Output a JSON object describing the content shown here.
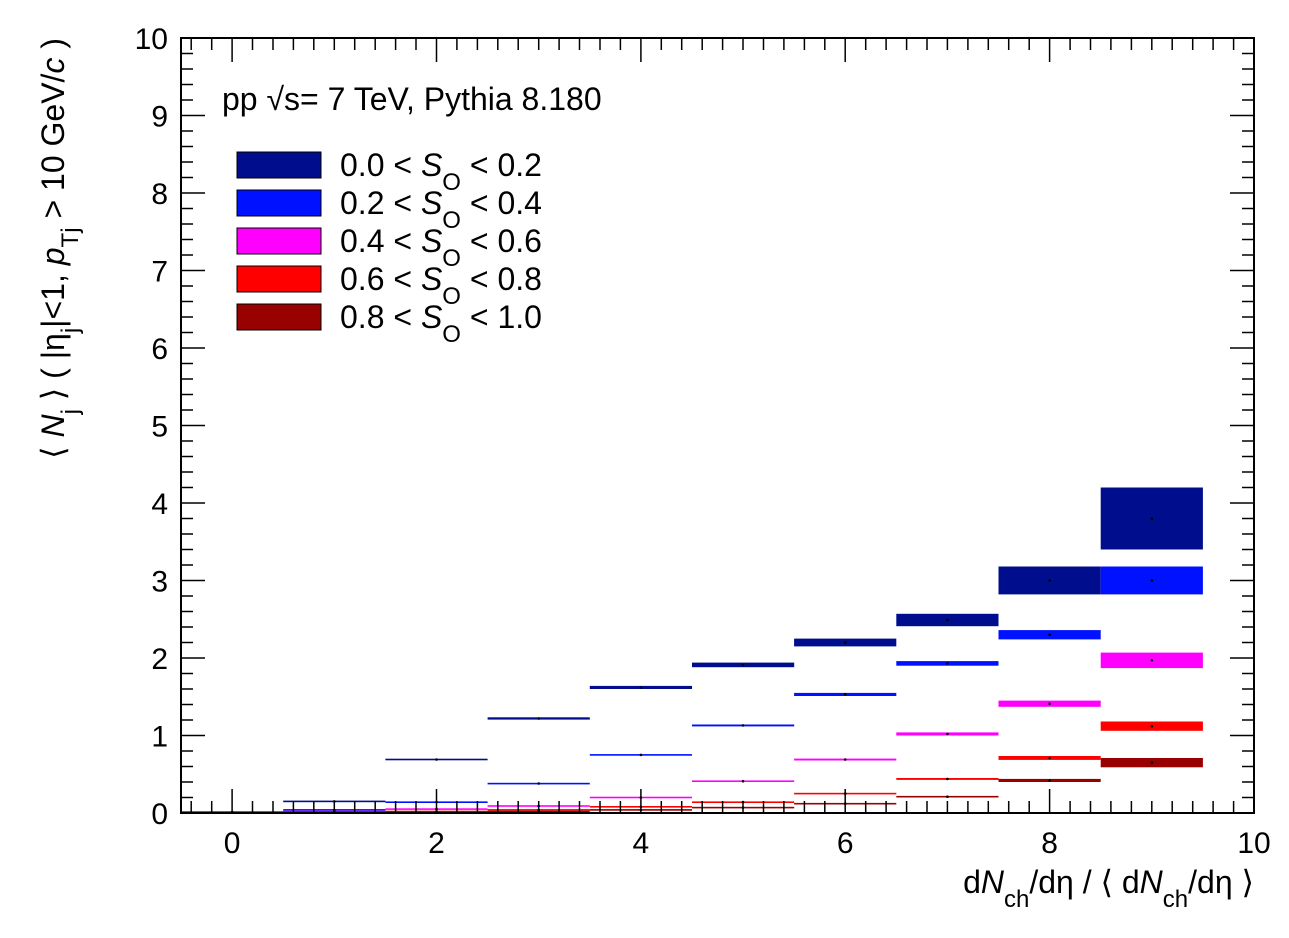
{
  "chart_data": {
    "type": "bar",
    "style": "error-boxes",
    "annotation": "pp √s= 7 TeV, Pythia 8.180",
    "xlabel": "dN_ch/dη / ⟨ dN_ch/dη ⟩",
    "ylabel": "⟨ N_j ⟩ ( |η_j|<1, p_T_j > 10 GeV/c )",
    "xlim": [
      -0.5,
      10
    ],
    "ylim": [
      0,
      10
    ],
    "xticks": [
      0,
      2,
      4,
      6,
      8,
      10
    ],
    "yticks": [
      0,
      1,
      2,
      3,
      4,
      5,
      6,
      7,
      8,
      9,
      10
    ],
    "legend_position": "top-left",
    "categories": [
      0,
      1,
      2,
      3,
      4,
      5,
      6,
      7,
      8,
      9
    ],
    "series": [
      {
        "name": "0.0 < S_O < 0.2",
        "color": "#000d8c",
        "values": [
          0.01,
          0.15,
          0.69,
          1.22,
          1.62,
          1.91,
          2.2,
          2.49,
          3.0,
          3.8
        ],
        "errors": [
          0.005,
          0.006,
          0.01,
          0.015,
          0.02,
          0.03,
          0.05,
          0.08,
          0.18,
          0.4
        ]
      },
      {
        "name": "0.2 < S_O < 0.4",
        "color": "#0011ff",
        "values": [
          0.01,
          0.04,
          0.14,
          0.38,
          0.75,
          1.13,
          1.53,
          1.93,
          2.3,
          3.0
        ],
        "errors": [
          0.005,
          0.005,
          0.006,
          0.008,
          0.01,
          0.012,
          0.02,
          0.03,
          0.06,
          0.18
        ]
      },
      {
        "name": "0.4 < S_O < 0.6",
        "color": "#ff00ff",
        "values": [
          0.01,
          0.02,
          0.05,
          0.09,
          0.2,
          0.41,
          0.69,
          1.02,
          1.41,
          1.97
        ],
        "errors": [
          0.004,
          0.004,
          0.005,
          0.005,
          0.006,
          0.008,
          0.012,
          0.02,
          0.04,
          0.1
        ]
      },
      {
        "name": "0.6 < S_O < 0.8",
        "color": "#ff0000",
        "values": [
          0.01,
          0.01,
          0.02,
          0.04,
          0.08,
          0.14,
          0.25,
          0.44,
          0.71,
          1.12
        ],
        "errors": [
          0.004,
          0.004,
          0.004,
          0.004,
          0.005,
          0.006,
          0.008,
          0.012,
          0.025,
          0.06
        ]
      },
      {
        "name": "0.8 < S_O < 1.0",
        "color": "#990000",
        "values": [
          0.005,
          0.01,
          0.01,
          0.02,
          0.04,
          0.07,
          0.12,
          0.21,
          0.42,
          0.65
        ],
        "errors": [
          0.003,
          0.003,
          0.003,
          0.004,
          0.004,
          0.005,
          0.006,
          0.01,
          0.02,
          0.06
        ]
      }
    ]
  }
}
